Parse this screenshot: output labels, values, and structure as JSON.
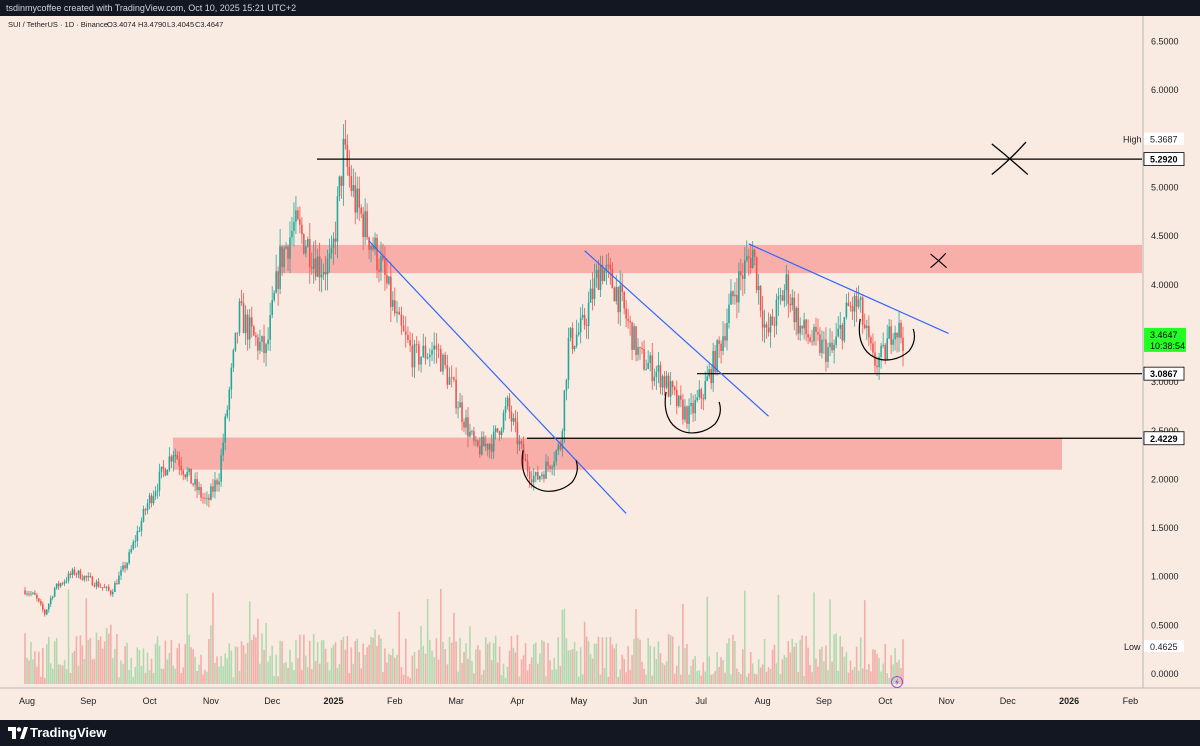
{
  "header": {
    "attribution": "tsdinmycoffee created with TradingView.com, Oct 10, 2025 15:21 UTC+2"
  },
  "chart_data": {
    "type": "candlestick",
    "title": "SUI / TetherUS · 1D · Binance",
    "ohlc": {
      "open": "O3.4074",
      "high": "H3.4790",
      "low": "L3.4045",
      "close": "C3.4647"
    },
    "y_axis": {
      "ticks": [
        "6.5000",
        "6.0000",
        "5.5000",
        "5.0000",
        "4.5000",
        "4.0000",
        "3.5000",
        "3.0000",
        "2.5000",
        "2.0000",
        "1.5000",
        "1.0000",
        "0.5000",
        "0.0000"
      ],
      "range": [
        0,
        6.75
      ]
    },
    "x_axis": {
      "ticks": [
        "Aug",
        "Sep",
        "Oct",
        "Nov",
        "Dec",
        "2025",
        "Feb",
        "Mar",
        "Apr",
        "May",
        "Jun",
        "Jul",
        "Aug",
        "Sep",
        "Oct",
        "Nov",
        "Dec",
        "2026",
        "Feb"
      ],
      "bold_ticks": [
        "2025",
        "2026"
      ]
    },
    "price_markers": {
      "high_label": "High",
      "high_value": "5.3687",
      "low_label": "Low",
      "low_value": "0.4625",
      "current_price": "3.4647",
      "countdown": "10:38:54"
    },
    "horizontal_levels": [
      {
        "value": 5.292,
        "label": "5.2920"
      },
      {
        "value": 3.0867,
        "label": "3.0867"
      },
      {
        "value": 2.4229,
        "label": "2.4229"
      }
    ],
    "resistance_zone": {
      "from": 4.12,
      "to": 4.41,
      "color": "#f7a9a4"
    },
    "support_zone": {
      "from": 2.1,
      "to": 2.43,
      "color": "#f7a9a4"
    },
    "downtrend_lines": [
      {
        "from": [
          "Jan 19 2025",
          4.45
        ],
        "to": [
          "May 25 2025",
          1.65
        ]
      },
      {
        "from": [
          "May 4 2025",
          4.35
        ],
        "to": [
          "Aug 4 2025",
          2.65
        ]
      },
      {
        "from": [
          "Jul 25 2025",
          4.42
        ],
        "to": [
          "Nov 2 2025",
          3.5
        ]
      }
    ],
    "price_path": [
      [
        "Jul 31 2024",
        0.86
      ],
      [
        "Aug 5 2024",
        0.8
      ],
      [
        "Aug 10 2024",
        0.62
      ],
      [
        "Aug 15 2024",
        0.88
      ],
      [
        "Aug 25 2024",
        1.05
      ],
      [
        "Sep 5 2024",
        0.93
      ],
      [
        "Sep 12 2024",
        0.84
      ],
      [
        "Sep 20 2024",
        1.15
      ],
      [
        "Sep 30 2024",
        1.75
      ],
      [
        "Oct 13 2024",
        2.3
      ],
      [
        "Oct 20 2024",
        2.05
      ],
      [
        "Oct 30 2024",
        1.75
      ],
      [
        "Nov 5 2024",
        2.05
      ],
      [
        "Nov 10 2024",
        2.9
      ],
      [
        "Nov 15 2024",
        3.7
      ],
      [
        "Nov 22 2024",
        3.45
      ],
      [
        "Nov 28 2024",
        3.3
      ],
      [
        "Dec 5 2024",
        4.25
      ],
      [
        "Dec 12 2024",
        4.6
      ],
      [
        "Dec 18 2024",
        4.45
      ],
      [
        "Dec 25 2024",
        4.2
      ],
      [
        "Dec 31 2024",
        4.2
      ],
      [
        "Jan 6 2025",
        5.35
      ],
      [
        "Jan 12 2025",
        4.85
      ],
      [
        "Jan 18 2025",
        4.55
      ],
      [
        "Jan 25 2025",
        4.2
      ],
      [
        "Feb 3 2025",
        3.55
      ],
      [
        "Feb 10 2025",
        3.25
      ],
      [
        "Feb 20 2025",
        3.35
      ],
      [
        "Mar 1 2025",
        2.85
      ],
      [
        "Mar 11 2025",
        2.3
      ],
      [
        "Mar 20 2025",
        2.4
      ],
      [
        "Mar 27 2025",
        2.75
      ],
      [
        "Apr 5 2025",
        2.15
      ],
      [
        "Apr 10 2025",
        2.0
      ],
      [
        "Apr 16 2025",
        2.15
      ],
      [
        "Apr 22 2025",
        2.35
      ],
      [
        "Apr 26 2025",
        3.4
      ],
      [
        "May 3 2025",
        3.55
      ],
      [
        "May 12 2025",
        4.2
      ],
      [
        "May 20 2025",
        3.95
      ],
      [
        "Jun 1 2025",
        3.25
      ],
      [
        "Jun 12 2025",
        3.05
      ],
      [
        "Jun 20 2025",
        2.75
      ],
      [
        "Jun 25 2025",
        2.65
      ],
      [
        "Jul 2 2025",
        2.9
      ],
      [
        "Jul 10 2025",
        3.35
      ],
      [
        "Jul 18 2025",
        3.95
      ],
      [
        "Jul 27 2025",
        4.35
      ],
      [
        "Aug 3 2025",
        3.45
      ],
      [
        "Aug 13 2025",
        4.0
      ],
      [
        "Aug 20 2025",
        3.55
      ],
      [
        "Aug 28 2025",
        3.4
      ],
      [
        "Sep 5 2025",
        3.3
      ],
      [
        "Sep 13 2025",
        3.75
      ],
      [
        "Sep 18 2025",
        3.8
      ],
      [
        "Sep 25 2025",
        3.2
      ],
      [
        "Sep 30 2025",
        3.25
      ],
      [
        "Oct 5 2025",
        3.6
      ],
      [
        "Oct 10 2025",
        3.46
      ]
    ],
    "annotations": {
      "crosses": [
        {
          "at": [
            "Dec 2 2025",
            5.3
          ],
          "size": "large"
        },
        {
          "at": [
            "Oct 28 2025",
            4.25
          ],
          "size": "small"
        }
      ],
      "cups": [
        {
          "at": [
            "Apr 16 2025",
            1.95
          ]
        },
        {
          "at": [
            "Jun 26 2025",
            2.55
          ]
        },
        {
          "at": [
            "Oct 1 2025",
            3.3
          ]
        }
      ]
    },
    "colors": {
      "up": "#26a69a",
      "down": "#ef5350",
      "trendline": "#3366ff",
      "level": "#000000",
      "price_tag": "#22ff22"
    }
  },
  "footer": {
    "brand": "TradingView"
  }
}
